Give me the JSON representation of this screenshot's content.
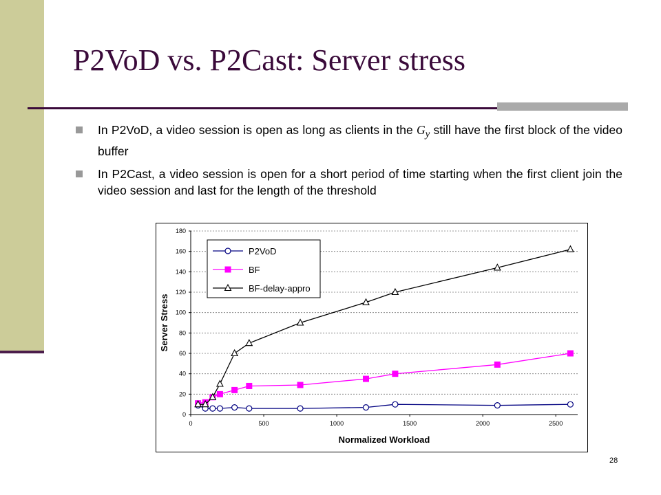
{
  "slide": {
    "title": "P2VoD vs. P2Cast: Server stress",
    "bullet1_pre": "In P2VoD, a video session is open as long as clients in the ",
    "bullet1_var": "G",
    "bullet1_sub": "y",
    "bullet1_post": " still have the first block of the video buffer",
    "bullet2": "In P2Cast, a video session is open for a short period of time starting when the first client join the video session and last for the length of the threshold",
    "page_number": "28"
  },
  "colors": {
    "accent": "#3a0a3a",
    "sidebar": "#cccc99",
    "p2vod": "#000080",
    "bf": "#ff00ff",
    "bf_delay": "#000000"
  },
  "chart_data": {
    "type": "line",
    "title": "",
    "xlabel": "Normalized Workload",
    "ylabel": "Server Stress",
    "xlim": [
      0,
      2650
    ],
    "ylim": [
      0,
      180
    ],
    "xticks": [
      0,
      500,
      1000,
      1500,
      2000,
      2500
    ],
    "yticks": [
      0,
      20,
      40,
      60,
      80,
      100,
      120,
      140,
      160,
      180
    ],
    "grid": true,
    "legend_position": "top-left",
    "series": [
      {
        "name": "P2VoD",
        "marker": "circle",
        "points": [
          [
            50,
            9
          ],
          [
            100,
            6
          ],
          [
            150,
            6
          ],
          [
            200,
            6
          ],
          [
            300,
            7
          ],
          [
            400,
            6
          ],
          [
            750,
            6
          ],
          [
            1200,
            7
          ],
          [
            1400,
            10
          ],
          [
            2100,
            9
          ],
          [
            2600,
            10
          ]
        ]
      },
      {
        "name": "BF",
        "marker": "square",
        "points": [
          [
            50,
            11
          ],
          [
            100,
            12
          ],
          [
            150,
            17
          ],
          [
            200,
            20
          ],
          [
            300,
            24
          ],
          [
            400,
            28
          ],
          [
            750,
            29
          ],
          [
            1200,
            35
          ],
          [
            1400,
            40
          ],
          [
            2100,
            49
          ],
          [
            2600,
            60
          ]
        ]
      },
      {
        "name": "BF-delay-appro",
        "marker": "triangle",
        "points": [
          [
            50,
            10
          ],
          [
            100,
            10
          ],
          [
            150,
            17
          ],
          [
            200,
            30
          ],
          [
            300,
            60
          ],
          [
            400,
            70
          ],
          [
            750,
            90
          ],
          [
            1200,
            110
          ],
          [
            1400,
            120
          ],
          [
            2100,
            144
          ],
          [
            2600,
            162
          ]
        ]
      }
    ]
  }
}
